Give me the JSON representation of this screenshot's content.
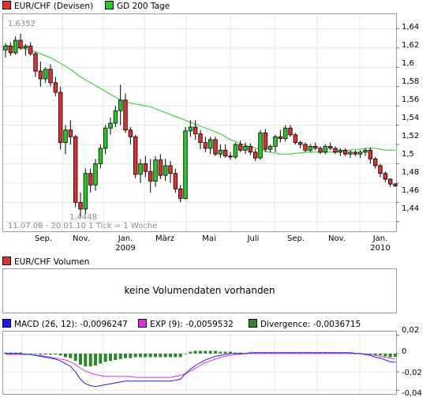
{
  "legend_top": [
    {
      "label": "EUR/CHF (Devisen)",
      "color": "#e03030"
    },
    {
      "label": "GD 200 Tage",
      "color": "#22cc22"
    }
  ],
  "price_panel": {
    "yticks": [
      "1,64",
      "1,62",
      "1,6",
      "1,58",
      "1,56",
      "1,54",
      "1,52",
      "1,5",
      "1,48",
      "1,46",
      "1,44"
    ],
    "months": [
      "Sep.",
      "Nov.",
      "Jan.",
      "März",
      "Mai",
      "Juli",
      "Sep.",
      "Nov.",
      "Jan."
    ],
    "years": [
      "2009",
      "2010"
    ],
    "max_label": "1,6352",
    "min_label": "1,4448",
    "range_note": "11.07.08 - 20.01.10   1 Tick = 1 Woche"
  },
  "volume_panel": {
    "legend_label": "EUR/CHF Volumen",
    "legend_color": "#e03030",
    "message": "keine Volumendaten vorhanden"
  },
  "macd_panel": {
    "legend": [
      {
        "label": "MACD (26, 12): -0,0096247",
        "color": "#1a1aff"
      },
      {
        "label": "EXP (9): -0,0059532",
        "color": "#dd33dd"
      },
      {
        "label": "Divergence: -0,0036715",
        "color": "#2a8a2a"
      }
    ],
    "yticks": [
      "0,02",
      "0",
      "-0,02",
      "-0,04"
    ]
  },
  "chart_data": {
    "type": "candlestick",
    "ylim": [
      1.43,
      1.655
    ],
    "candles": [
      [
        1.618,
        1.625,
        1.61,
        1.622
      ],
      [
        1.622,
        1.626,
        1.612,
        1.615
      ],
      [
        1.615,
        1.632,
        1.613,
        1.628
      ],
      [
        1.628,
        1.635,
        1.618,
        1.62
      ],
      [
        1.62,
        1.624,
        1.612,
        1.622
      ],
      [
        1.622,
        1.626,
        1.612,
        1.614
      ],
      [
        1.614,
        1.616,
        1.59,
        1.596
      ],
      [
        1.596,
        1.606,
        1.58,
        1.588
      ],
      [
        1.588,
        1.6,
        1.584,
        1.598
      ],
      [
        1.598,
        1.603,
        1.58,
        1.584
      ],
      [
        1.584,
        1.59,
        1.57,
        1.574
      ],
      [
        1.574,
        1.58,
        1.515,
        1.522
      ],
      [
        1.522,
        1.54,
        1.51,
        1.535
      ],
      [
        1.535,
        1.545,
        1.52,
        1.528
      ],
      [
        1.528,
        1.53,
        1.455,
        1.46
      ],
      [
        1.46,
        1.47,
        1.445,
        1.453
      ],
      [
        1.453,
        1.495,
        1.448,
        1.49
      ],
      [
        1.49,
        1.495,
        1.47,
        1.478
      ],
      [
        1.478,
        1.505,
        1.472,
        1.5
      ],
      [
        1.5,
        1.52,
        1.495,
        1.516
      ],
      [
        1.516,
        1.54,
        1.51,
        1.537
      ],
      [
        1.537,
        1.548,
        1.53,
        1.542
      ],
      [
        1.542,
        1.56,
        1.538,
        1.555
      ],
      [
        1.555,
        1.582,
        1.54,
        1.566
      ],
      [
        1.566,
        1.573,
        1.532,
        1.535
      ],
      [
        1.535,
        1.538,
        1.52,
        1.528
      ],
      [
        1.528,
        1.53,
        1.485,
        1.489
      ],
      [
        1.489,
        1.505,
        1.48,
        1.5
      ],
      [
        1.5,
        1.508,
        1.486,
        1.492
      ],
      [
        1.492,
        1.505,
        1.47,
        1.482
      ],
      [
        1.482,
        1.508,
        1.476,
        1.504
      ],
      [
        1.504,
        1.51,
        1.484,
        1.488
      ],
      [
        1.488,
        1.505,
        1.482,
        1.498
      ],
      [
        1.498,
        1.503,
        1.48,
        1.49
      ],
      [
        1.49,
        1.495,
        1.47,
        1.474
      ],
      [
        1.474,
        1.478,
        1.46,
        1.464
      ],
      [
        1.464,
        1.538,
        1.463,
        1.534
      ],
      [
        1.534,
        1.545,
        1.528,
        1.538
      ],
      [
        1.538,
        1.545,
        1.525,
        1.531
      ],
      [
        1.531,
        1.535,
        1.515,
        1.522
      ],
      [
        1.522,
        1.528,
        1.512,
        1.516
      ],
      [
        1.516,
        1.528,
        1.51,
        1.525
      ],
      [
        1.525,
        1.528,
        1.508,
        1.51
      ],
      [
        1.51,
        1.52,
        1.506,
        1.514
      ],
      [
        1.514,
        1.52,
        1.506,
        1.508
      ],
      [
        1.508,
        1.512,
        1.504,
        1.507
      ],
      [
        1.507,
        1.522,
        1.505,
        1.52
      ],
      [
        1.52,
        1.524,
        1.512,
        1.514
      ],
      [
        1.514,
        1.522,
        1.51,
        1.518
      ],
      [
        1.518,
        1.521,
        1.509,
        1.512
      ],
      [
        1.512,
        1.515,
        1.503,
        1.506
      ],
      [
        1.506,
        1.535,
        1.504,
        1.532
      ],
      [
        1.532,
        1.536,
        1.512,
        1.515
      ],
      [
        1.515,
        1.52,
        1.512,
        1.518
      ],
      [
        1.518,
        1.53,
        1.512,
        1.528
      ],
      [
        1.528,
        1.535,
        1.522,
        1.526
      ],
      [
        1.526,
        1.54,
        1.523,
        1.537
      ],
      [
        1.537,
        1.54,
        1.528,
        1.53
      ],
      [
        1.53,
        1.532,
        1.52,
        1.522
      ],
      [
        1.522,
        1.524,
        1.516,
        1.52
      ],
      [
        1.52,
        1.522,
        1.512,
        1.514
      ],
      [
        1.514,
        1.52,
        1.512,
        1.518
      ],
      [
        1.518,
        1.522,
        1.514,
        1.516
      ],
      [
        1.516,
        1.518,
        1.51,
        1.512
      ],
      [
        1.512,
        1.52,
        1.51,
        1.518
      ],
      [
        1.518,
        1.522,
        1.514,
        1.516
      ],
      [
        1.516,
        1.518,
        1.51,
        1.512
      ],
      [
        1.512,
        1.516,
        1.508,
        1.514
      ],
      [
        1.514,
        1.516,
        1.508,
        1.51
      ],
      [
        1.51,
        1.514,
        1.506,
        1.512
      ],
      [
        1.512,
        1.514,
        1.508,
        1.51
      ],
      [
        1.51,
        1.514,
        1.506,
        1.512
      ],
      [
        1.512,
        1.516,
        1.508,
        1.514
      ],
      [
        1.514,
        1.517,
        1.5,
        1.505
      ],
      [
        1.505,
        1.507,
        1.495,
        1.498
      ],
      [
        1.498,
        1.5,
        1.486,
        1.49
      ],
      [
        1.49,
        1.492,
        1.481,
        1.484
      ],
      [
        1.484,
        1.485,
        1.476,
        1.479
      ],
      [
        1.479,
        1.48,
        1.476,
        1.477
      ]
    ],
    "ma200": [
      1.623,
      1.622,
      1.621,
      1.62,
      1.619,
      1.618,
      1.616,
      1.614,
      1.612,
      1.61,
      1.607,
      1.604,
      1.601,
      1.598,
      1.594,
      1.59,
      1.587,
      1.584,
      1.581,
      1.578,
      1.575,
      1.572,
      1.569,
      1.566,
      1.564,
      1.563,
      1.562,
      1.561,
      1.56,
      1.559,
      1.557,
      1.555,
      1.553,
      1.551,
      1.549,
      1.547,
      1.545,
      1.543,
      1.541,
      1.539,
      1.537,
      1.535,
      1.533,
      1.531,
      1.528,
      1.525,
      1.523,
      1.521,
      1.519,
      1.518,
      1.516,
      1.515,
      1.513,
      1.512,
      1.511,
      1.51,
      1.51,
      1.51,
      1.511,
      1.511,
      1.512,
      1.512,
      1.512,
      1.512,
      1.512,
      1.512,
      1.512,
      1.513,
      1.514,
      1.514,
      1.515,
      1.515,
      1.516,
      1.516,
      1.516,
      1.515,
      1.514,
      1.514,
      1.514
    ],
    "macd_line": [
      0.0,
      0.0,
      0.0,
      0.0,
      -0.001,
      -0.001,
      -0.002,
      -0.003,
      -0.004,
      -0.005,
      -0.006,
      -0.008,
      -0.011,
      -0.014,
      -0.02,
      -0.028,
      -0.033,
      -0.035,
      -0.036,
      -0.035,
      -0.034,
      -0.033,
      -0.032,
      -0.031,
      -0.03,
      -0.03,
      -0.03,
      -0.03,
      -0.03,
      -0.03,
      -0.03,
      -0.03,
      -0.03,
      -0.03,
      -0.029,
      -0.028,
      -0.022,
      -0.017,
      -0.013,
      -0.01,
      -0.007,
      -0.005,
      -0.003,
      -0.002,
      -0.001,
      0.0,
      0.0,
      0.0,
      0.0,
      0.001,
      0.001,
      0.001,
      0.001,
      0.001,
      0.001,
      0.001,
      0.001,
      0.001,
      0.001,
      0.001,
      0.001,
      0.001,
      0.001,
      0.001,
      0.001,
      0.001,
      0.001,
      0.001,
      0.001,
      0.001,
      0.0,
      0.0,
      -0.001,
      -0.002,
      -0.004,
      -0.005,
      -0.007,
      -0.009,
      -0.0096
    ],
    "exp_line": [
      -0.001,
      -0.001,
      -0.001,
      -0.001,
      -0.001,
      -0.001,
      -0.002,
      -0.002,
      -0.003,
      -0.004,
      -0.005,
      -0.006,
      -0.007,
      -0.009,
      -0.012,
      -0.016,
      -0.019,
      -0.021,
      -0.023,
      -0.024,
      -0.025,
      -0.025,
      -0.025,
      -0.025,
      -0.025,
      -0.025,
      -0.026,
      -0.026,
      -0.026,
      -0.026,
      -0.026,
      -0.026,
      -0.026,
      -0.026,
      -0.025,
      -0.024,
      -0.022,
      -0.019,
      -0.016,
      -0.013,
      -0.01,
      -0.008,
      -0.006,
      -0.004,
      -0.003,
      -0.002,
      -0.001,
      -0.001,
      0.0,
      0.0,
      0.0,
      0.0,
      0.0,
      0.0,
      0.0,
      0.0,
      0.0,
      0.0,
      0.0,
      0.0,
      0.0,
      0.0,
      0.0,
      0.0,
      0.0,
      0.0,
      0.0,
      0.0,
      0.0,
      0.0,
      0.0,
      0.0,
      -0.001,
      -0.001,
      -0.002,
      -0.003,
      -0.004,
      -0.005,
      -0.006
    ]
  }
}
